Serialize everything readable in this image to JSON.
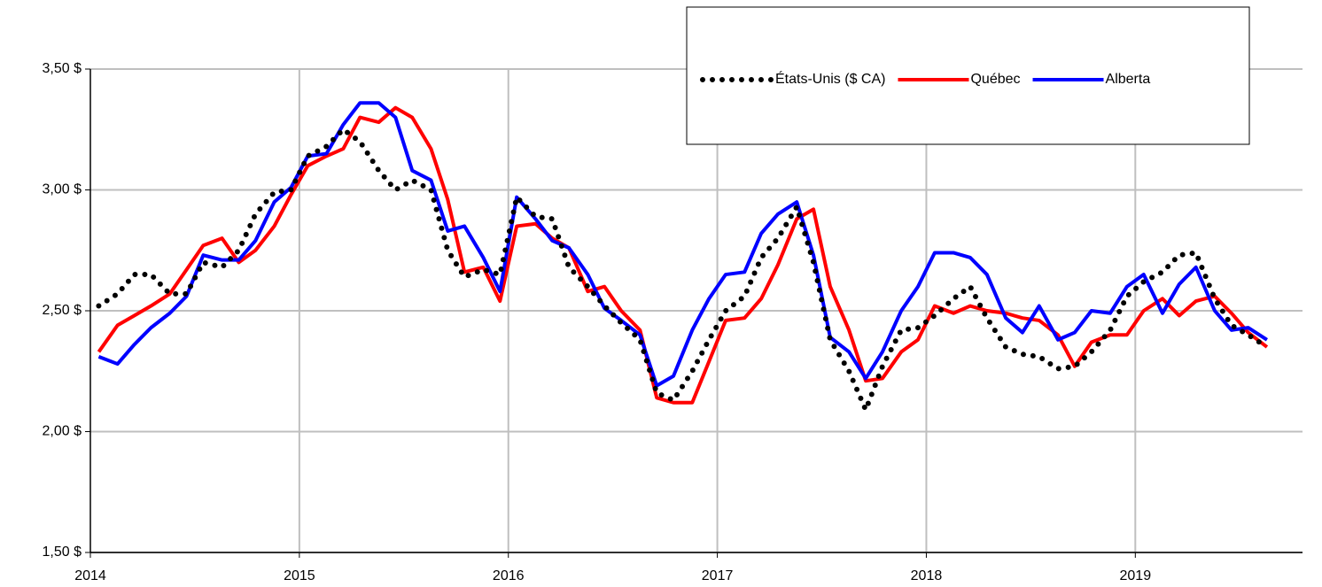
{
  "chart_data": {
    "type": "line",
    "x": [
      2014.04,
      2014.13,
      2014.21,
      2014.29,
      2014.38,
      2014.46,
      2014.54,
      2014.63,
      2014.71,
      2014.79,
      2014.88,
      2014.96,
      2015.04,
      2015.13,
      2015.21,
      2015.29,
      2015.38,
      2015.46,
      2015.54,
      2015.63,
      2015.71,
      2015.79,
      2015.88,
      2015.96,
      2016.04,
      2016.13,
      2016.21,
      2016.29,
      2016.38,
      2016.46,
      2016.54,
      2016.63,
      2016.71,
      2016.79,
      2016.88,
      2016.96,
      2017.04,
      2017.13,
      2017.21,
      2017.29,
      2017.38,
      2017.46,
      2017.54,
      2017.63,
      2017.71,
      2017.79,
      2017.88,
      2017.96,
      2018.04,
      2018.13,
      2018.21,
      2018.29,
      2018.38,
      2018.46,
      2018.54,
      2018.63,
      2018.71,
      2018.79,
      2018.88,
      2018.96,
      2019.04,
      2019.13,
      2019.21,
      2019.29,
      2019.38,
      2019.46,
      2019.54,
      2019.63
    ],
    "series": [
      {
        "name": "États-Unis ($ CA)",
        "color": "#000000",
        "style": "dotted",
        "values": [
          2.52,
          2.57,
          2.65,
          2.65,
          2.57,
          2.57,
          2.7,
          2.68,
          2.75,
          2.9,
          2.99,
          3.0,
          3.14,
          3.18,
          3.25,
          3.2,
          3.08,
          3.0,
          3.04,
          3.0,
          2.75,
          2.64,
          2.67,
          2.65,
          2.97,
          2.89,
          2.88,
          2.68,
          2.6,
          2.52,
          2.45,
          2.38,
          2.16,
          2.13,
          2.25,
          2.38,
          2.5,
          2.56,
          2.72,
          2.8,
          2.93,
          2.7,
          2.38,
          2.25,
          2.09,
          2.27,
          2.42,
          2.43,
          2.48,
          2.55,
          2.6,
          2.47,
          2.35,
          2.32,
          2.31,
          2.26,
          2.27,
          2.33,
          2.42,
          2.56,
          2.62,
          2.66,
          2.73,
          2.74,
          2.55,
          2.44,
          2.4,
          2.35
        ]
      },
      {
        "name": "Québec",
        "color": "#ff0000",
        "style": "solid",
        "values": [
          2.33,
          2.44,
          2.48,
          2.52,
          2.57,
          2.67,
          2.77,
          2.8,
          2.7,
          2.75,
          2.85,
          2.98,
          3.1,
          3.14,
          3.17,
          3.3,
          3.28,
          3.34,
          3.3,
          3.17,
          2.96,
          2.66,
          2.68,
          2.54,
          2.85,
          2.86,
          2.8,
          2.76,
          2.58,
          2.6,
          2.5,
          2.42,
          2.14,
          2.12,
          2.12,
          2.29,
          2.46,
          2.47,
          2.55,
          2.69,
          2.88,
          2.92,
          2.6,
          2.42,
          2.21,
          2.22,
          2.33,
          2.38,
          2.52,
          2.49,
          2.52,
          2.5,
          2.49,
          2.47,
          2.46,
          2.4,
          2.27,
          2.37,
          2.4,
          2.4,
          2.5,
          2.55,
          2.48,
          2.54,
          2.56,
          2.49,
          2.41,
          2.35
        ]
      },
      {
        "name": "Alberta",
        "color": "#0000ff",
        "style": "solid",
        "values": [
          2.31,
          2.28,
          2.36,
          2.43,
          2.49,
          2.56,
          2.73,
          2.71,
          2.71,
          2.79,
          2.95,
          3.01,
          3.14,
          3.15,
          3.27,
          3.36,
          3.36,
          3.3,
          3.08,
          3.04,
          2.83,
          2.85,
          2.72,
          2.58,
          2.97,
          2.88,
          2.79,
          2.76,
          2.65,
          2.51,
          2.46,
          2.4,
          2.19,
          2.23,
          2.42,
          2.55,
          2.65,
          2.66,
          2.82,
          2.9,
          2.95,
          2.73,
          2.39,
          2.33,
          2.22,
          2.33,
          2.5,
          2.6,
          2.74,
          2.74,
          2.72,
          2.65,
          2.47,
          2.41,
          2.52,
          2.38,
          2.41,
          2.5,
          2.49,
          2.6,
          2.65,
          2.49,
          2.61,
          2.68,
          2.5,
          2.42,
          2.43,
          2.38
        ]
      }
    ],
    "xlim": [
      2014,
      2019.8
    ],
    "xticks": [
      2014,
      2015,
      2016,
      2017,
      2018,
      2019
    ],
    "ylim": [
      1.5,
      3.5
    ],
    "yticks": [
      {
        "value": 1.5,
        "label": "1,50 $"
      },
      {
        "value": 2,
        "label": "2,00 $"
      },
      {
        "value": 2.5,
        "label": "2,50 $"
      },
      {
        "value": 3,
        "label": "3,00 $"
      },
      {
        "value": 3.5,
        "label": "3,50 $"
      }
    ],
    "grid": true,
    "legend": "top-right"
  }
}
